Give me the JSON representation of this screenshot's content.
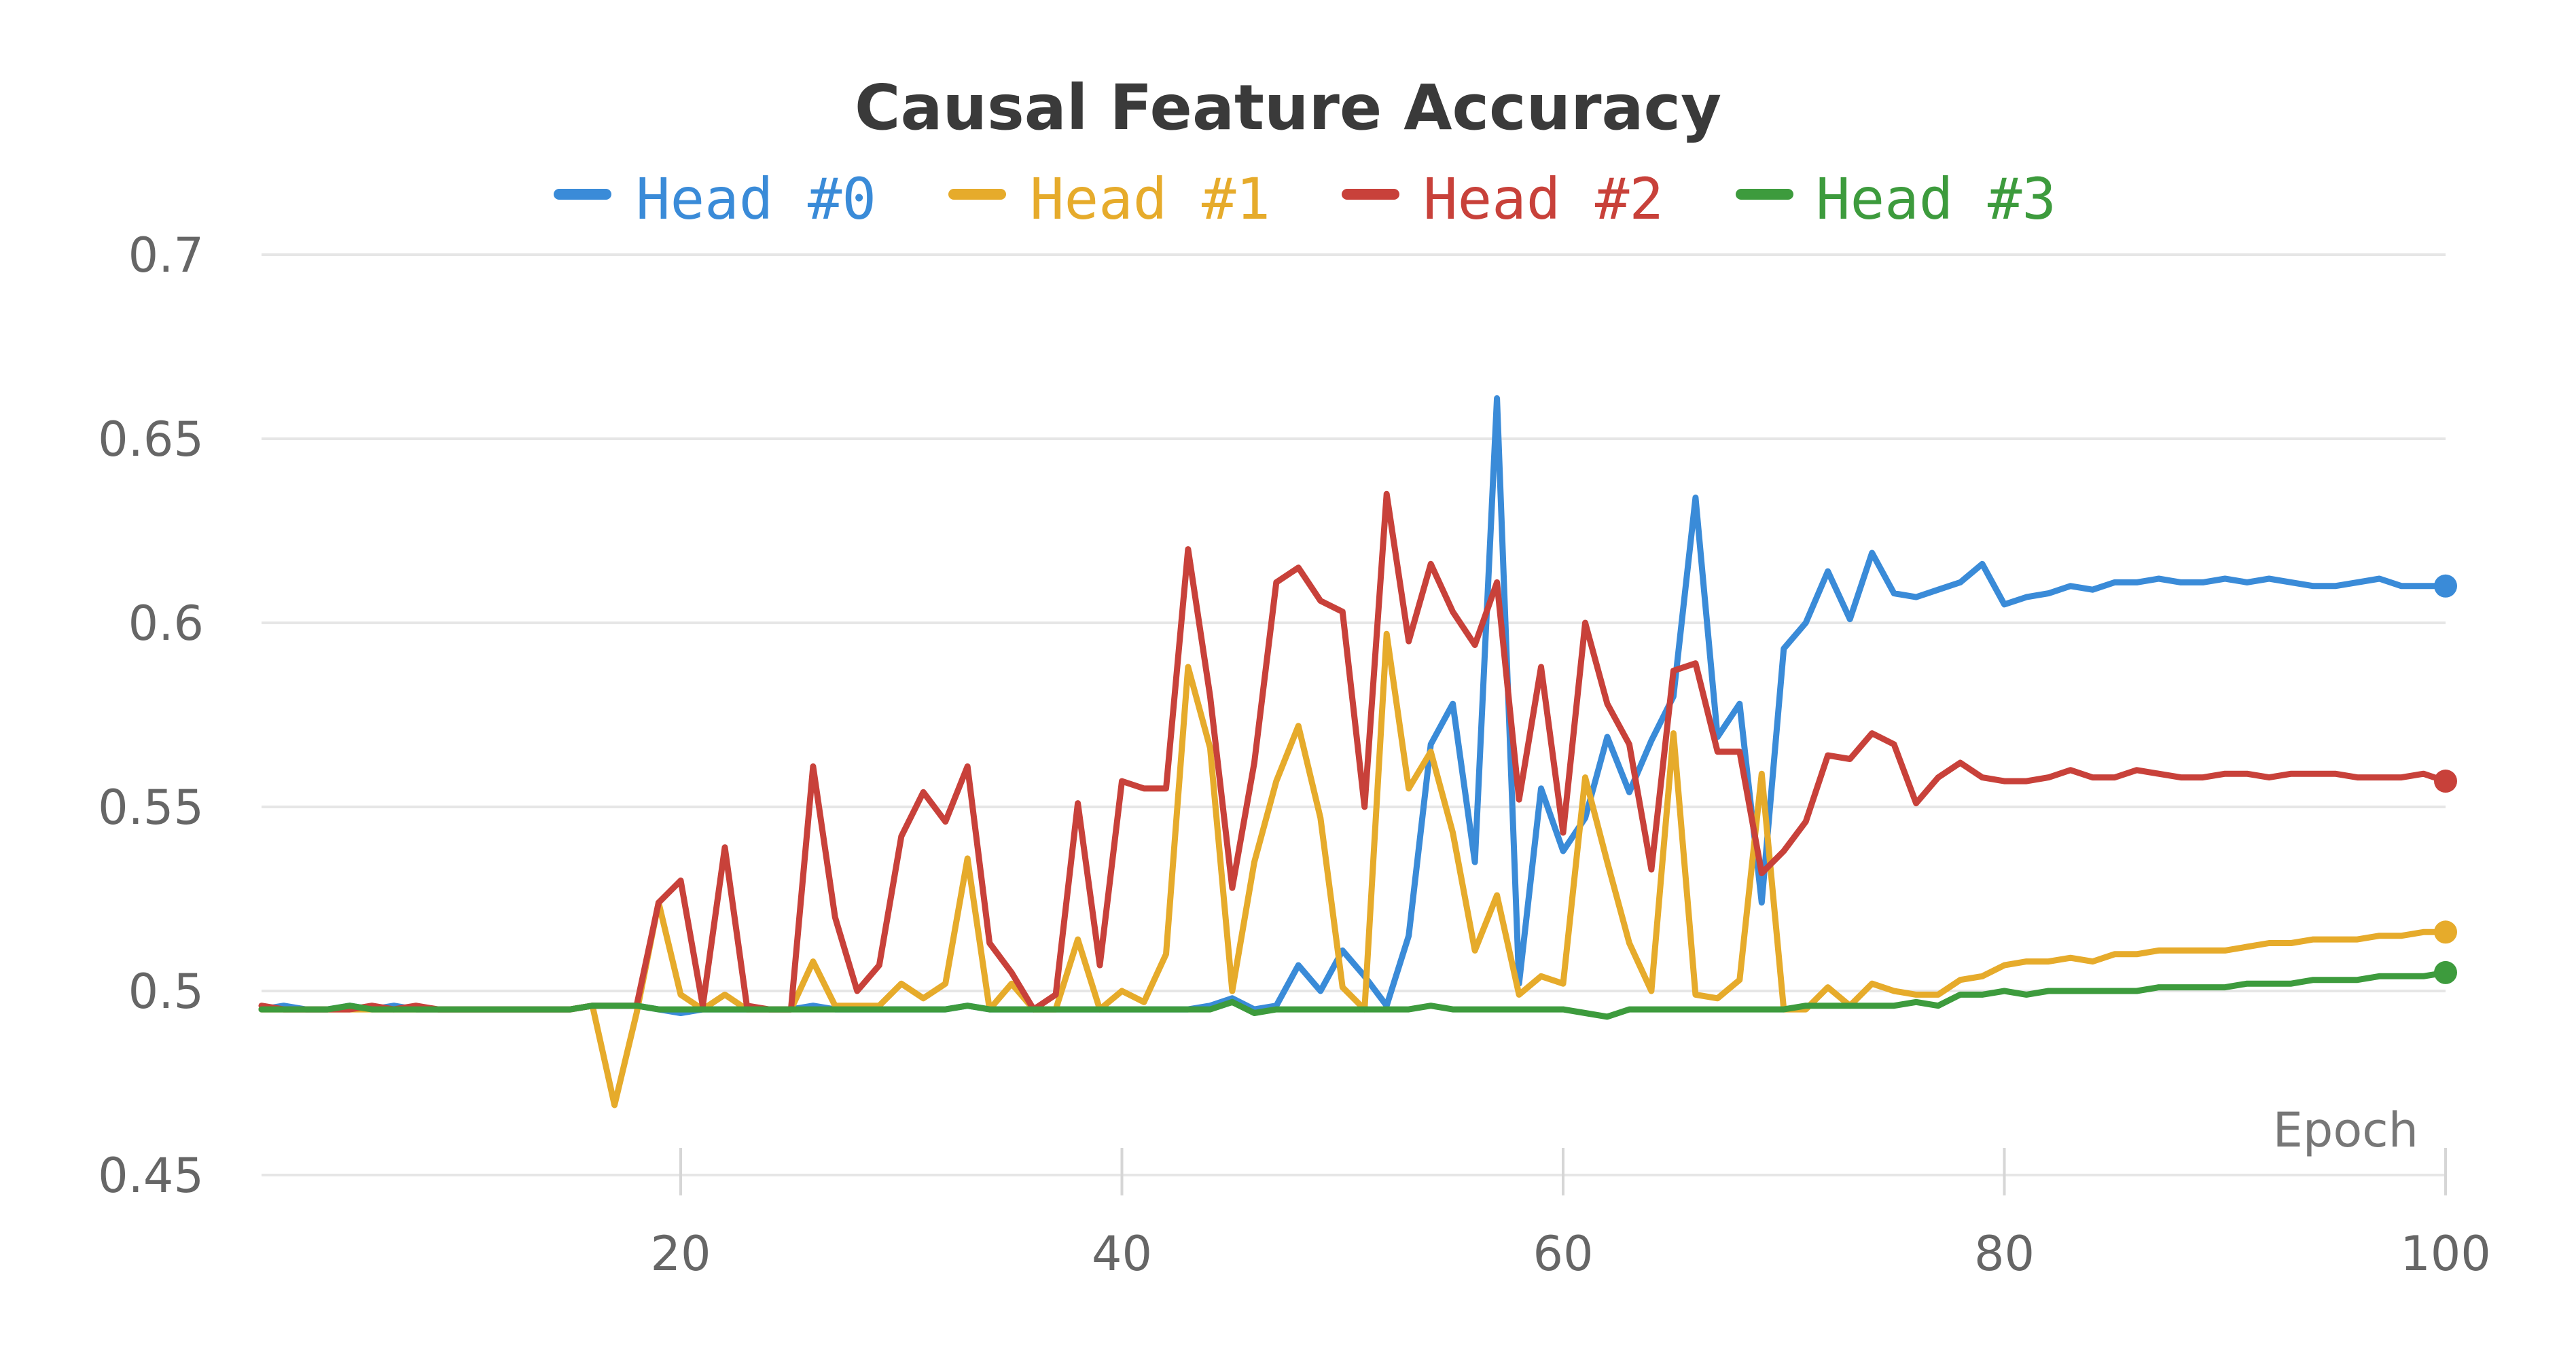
{
  "chart_data": {
    "type": "line",
    "title": "Causal Feature Accuracy",
    "xlabel": "Epoch",
    "ylabel": "",
    "xlim": [
      1,
      100
    ],
    "ylim": [
      0.45,
      0.7
    ],
    "yticks": [
      "0.45",
      "0.5",
      "0.55",
      "0.6",
      "0.65",
      "0.7"
    ],
    "xticks": [
      "20",
      "40",
      "60",
      "80",
      "100"
    ],
    "grid": true,
    "legend_position": "top",
    "series": [
      {
        "name": "Head #0",
        "color": "#3a8bd8",
        "values": [
          0.495,
          0.496,
          0.495,
          0.495,
          0.496,
          0.495,
          0.496,
          0.495,
          0.495,
          0.495,
          0.495,
          0.495,
          0.495,
          0.495,
          0.495,
          0.496,
          0.496,
          0.496,
          0.495,
          0.494,
          0.495,
          0.495,
          0.495,
          0.495,
          0.495,
          0.496,
          0.495,
          0.495,
          0.495,
          0.495,
          0.495,
          0.495,
          0.496,
          0.495,
          0.495,
          0.495,
          0.495,
          0.495,
          0.495,
          0.495,
          0.495,
          0.495,
          0.495,
          0.496,
          0.498,
          0.495,
          0.496,
          0.507,
          0.5,
          0.511,
          0.504,
          0.496,
          0.515,
          0.567,
          0.578,
          0.535,
          0.661,
          0.502,
          0.555,
          0.538,
          0.547,
          0.569,
          0.554,
          0.568,
          0.58,
          0.634,
          0.569,
          0.578,
          0.524,
          0.593,
          0.6,
          0.614,
          0.601,
          0.619,
          0.608,
          0.607,
          0.609,
          0.611,
          0.616,
          0.605,
          0.607,
          0.608,
          0.61,
          0.609,
          0.611,
          0.611,
          0.612,
          0.611,
          0.611,
          0.612,
          0.611,
          0.612,
          0.611,
          0.61,
          0.61,
          0.611,
          0.612,
          0.61,
          0.61,
          0.61
        ]
      },
      {
        "name": "Head #1",
        "color": "#e6ab2b",
        "values": [
          0.495,
          0.495,
          0.495,
          0.495,
          0.495,
          0.495,
          0.495,
          0.495,
          0.495,
          0.495,
          0.495,
          0.495,
          0.495,
          0.495,
          0.495,
          0.496,
          0.469,
          0.494,
          0.524,
          0.499,
          0.495,
          0.499,
          0.495,
          0.495,
          0.495,
          0.508,
          0.496,
          0.496,
          0.496,
          0.502,
          0.498,
          0.502,
          0.536,
          0.495,
          0.502,
          0.495,
          0.495,
          0.514,
          0.495,
          0.5,
          0.497,
          0.51,
          0.588,
          0.566,
          0.5,
          0.535,
          0.557,
          0.572,
          0.547,
          0.501,
          0.495,
          0.597,
          0.555,
          0.565,
          0.543,
          0.511,
          0.526,
          0.499,
          0.504,
          0.502,
          0.558,
          0.535,
          0.513,
          0.5,
          0.57,
          0.499,
          0.498,
          0.503,
          0.559,
          0.495,
          0.495,
          0.501,
          0.496,
          0.502,
          0.5,
          0.499,
          0.499,
          0.503,
          0.504,
          0.507,
          0.508,
          0.508,
          0.509,
          0.508,
          0.51,
          0.51,
          0.511,
          0.511,
          0.511,
          0.511,
          0.512,
          0.513,
          0.513,
          0.514,
          0.514,
          0.514,
          0.515,
          0.515,
          0.516,
          0.516
        ]
      },
      {
        "name": "Head #2",
        "color": "#c8413a",
        "values": [
          0.496,
          0.495,
          0.495,
          0.495,
          0.495,
          0.496,
          0.495,
          0.496,
          0.495,
          0.495,
          0.495,
          0.495,
          0.495,
          0.495,
          0.495,
          0.496,
          0.496,
          0.496,
          0.524,
          0.53,
          0.496,
          0.539,
          0.496,
          0.495,
          0.495,
          0.561,
          0.52,
          0.5,
          0.507,
          0.542,
          0.554,
          0.546,
          0.561,
          0.513,
          0.505,
          0.495,
          0.499,
          0.551,
          0.507,
          0.557,
          0.555,
          0.555,
          0.62,
          0.58,
          0.528,
          0.562,
          0.611,
          0.615,
          0.606,
          0.603,
          0.55,
          0.635,
          0.595,
          0.616,
          0.603,
          0.594,
          0.611,
          0.552,
          0.588,
          0.543,
          0.6,
          0.578,
          0.567,
          0.533,
          0.587,
          0.589,
          0.565,
          0.565,
          0.532,
          0.538,
          0.546,
          0.564,
          0.563,
          0.57,
          0.567,
          0.551,
          0.558,
          0.562,
          0.558,
          0.557,
          0.557,
          0.558,
          0.56,
          0.558,
          0.558,
          0.56,
          0.559,
          0.558,
          0.558,
          0.559,
          0.559,
          0.558,
          0.559,
          0.559,
          0.559,
          0.558,
          0.558,
          0.558,
          0.559,
          0.557
        ]
      },
      {
        "name": "Head #3",
        "color": "#3d9b3d",
        "values": [
          0.495,
          0.495,
          0.495,
          0.495,
          0.496,
          0.495,
          0.495,
          0.495,
          0.495,
          0.495,
          0.495,
          0.495,
          0.495,
          0.495,
          0.495,
          0.496,
          0.496,
          0.496,
          0.495,
          0.495,
          0.495,
          0.495,
          0.495,
          0.495,
          0.495,
          0.495,
          0.495,
          0.495,
          0.495,
          0.495,
          0.495,
          0.495,
          0.496,
          0.495,
          0.495,
          0.495,
          0.495,
          0.495,
          0.495,
          0.495,
          0.495,
          0.495,
          0.495,
          0.495,
          0.497,
          0.494,
          0.495,
          0.495,
          0.495,
          0.495,
          0.495,
          0.495,
          0.495,
          0.496,
          0.495,
          0.495,
          0.495,
          0.495,
          0.495,
          0.495,
          0.494,
          0.493,
          0.495,
          0.495,
          0.495,
          0.495,
          0.495,
          0.495,
          0.495,
          0.495,
          0.496,
          0.496,
          0.496,
          0.496,
          0.496,
          0.497,
          0.496,
          0.499,
          0.499,
          0.5,
          0.499,
          0.5,
          0.5,
          0.5,
          0.5,
          0.5,
          0.501,
          0.501,
          0.501,
          0.501,
          0.502,
          0.502,
          0.502,
          0.503,
          0.503,
          0.503,
          0.504,
          0.504,
          0.504,
          0.505
        ]
      }
    ]
  }
}
